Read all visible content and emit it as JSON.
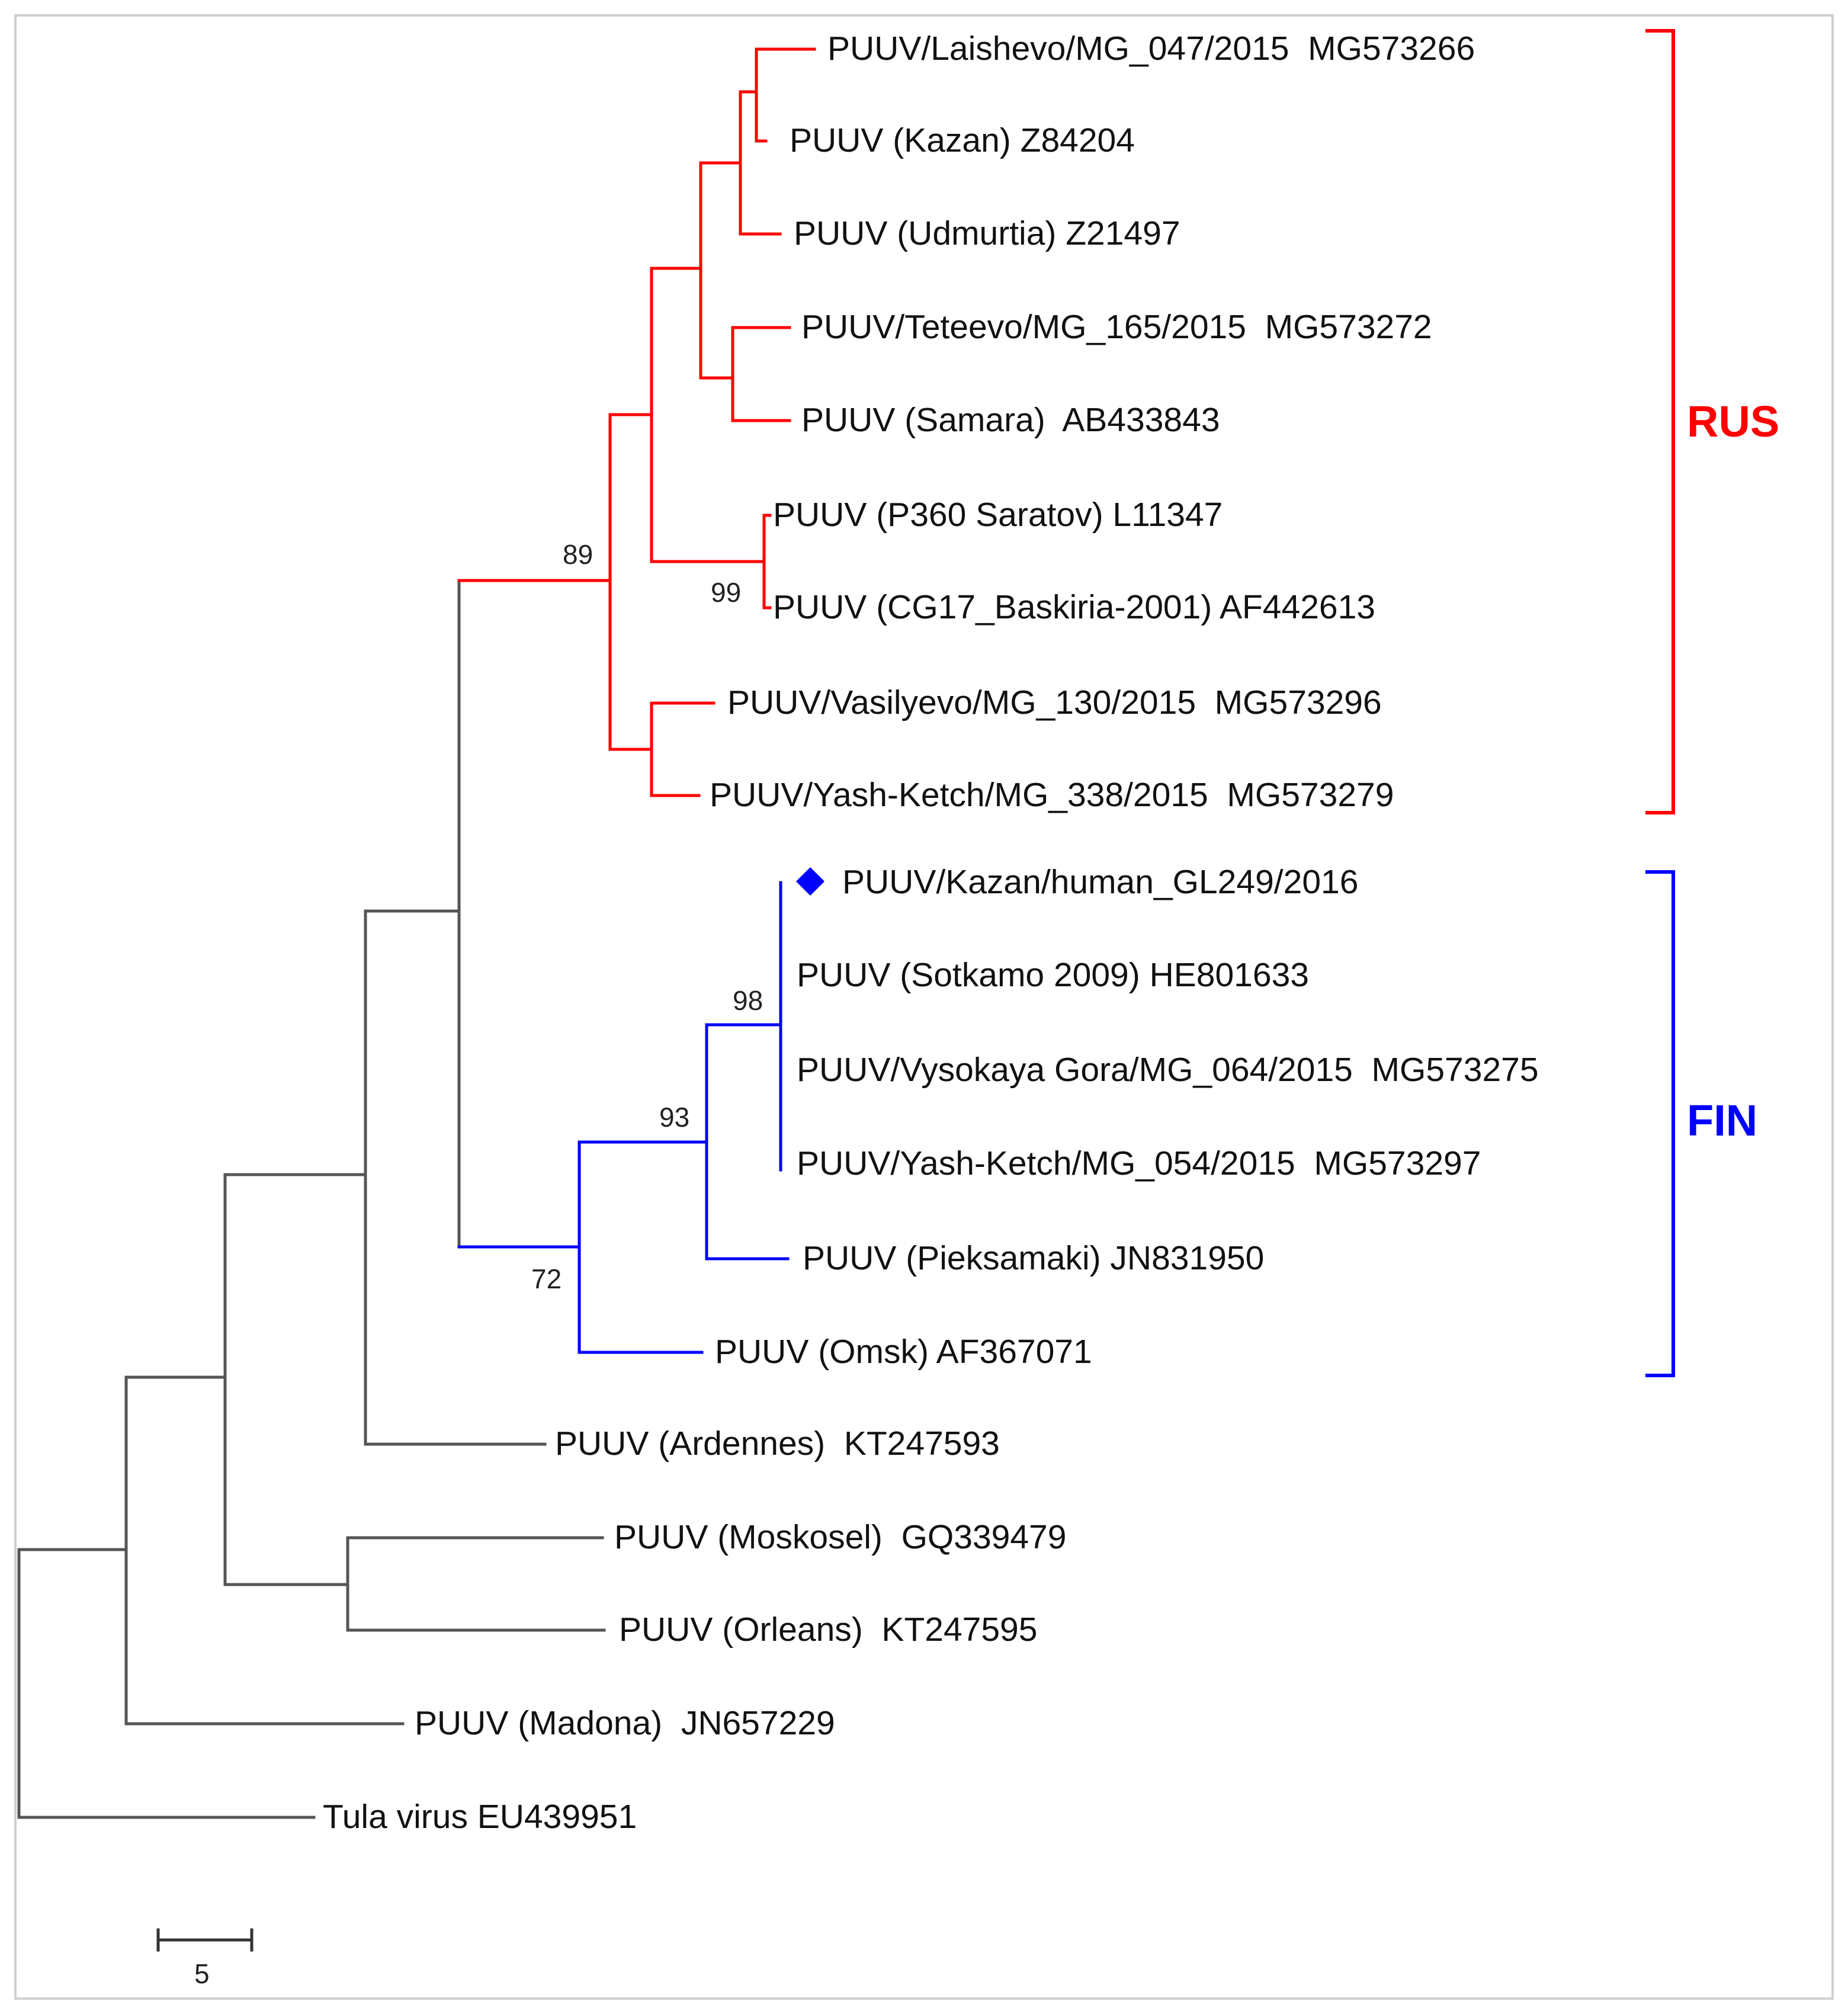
{
  "colors": {
    "russian_clade": "#ff0000",
    "finnish_clade": "#0000ff",
    "outgroup": "#555555",
    "marker": "#0000ff"
  },
  "clades": [
    {
      "id": "rus",
      "label": "RUS",
      "color": "#ff0000"
    },
    {
      "id": "fin",
      "label": "FIN",
      "color": "#0000ff"
    }
  ],
  "tips": [
    {
      "id": "laishevo",
      "label": "PUUV/Laishevo/MG_047/2015  MG573266"
    },
    {
      "id": "kazan",
      "label": "PUUV (Kazan) Z84204"
    },
    {
      "id": "udmurtia",
      "label": "PUUV (Udmurtia) Z21497"
    },
    {
      "id": "teteevo",
      "label": "PUUV/Teteevo/MG_165/2015  MG573272"
    },
    {
      "id": "samara",
      "label": "PUUV (Samara)  AB433843"
    },
    {
      "id": "saratov",
      "label": "PUUV (P360 Saratov) L11347"
    },
    {
      "id": "baskiria",
      "label": "PUUV (CG17_Baskiria-2001) AF442613"
    },
    {
      "id": "vasilyevo",
      "label": "PUUV/Vasilyevo/MG_130/2015  MG573296"
    },
    {
      "id": "yashketch338",
      "label": "PUUV/Yash-Ketch/MG_338/2015  MG573279"
    },
    {
      "id": "kazanhuman",
      "label": "PUUV/Kazan/human_GL249/2016",
      "marker": "diamond"
    },
    {
      "id": "sotkamo",
      "label": "PUUV (Sotkamo 2009) HE801633"
    },
    {
      "id": "vysokaya",
      "label": "PUUV/Vysokaya Gora/MG_064/2015  MG573275"
    },
    {
      "id": "yashketch054",
      "label": "PUUV/Yash-Ketch/MG_054/2015  MG573297"
    },
    {
      "id": "pieksamaki",
      "label": "PUUV (Pieksamaki) JN831950"
    },
    {
      "id": "omsk",
      "label": "PUUV (Omsk) AF367071"
    },
    {
      "id": "ardennes",
      "label": "PUUV (Ardennes)  KT247593"
    },
    {
      "id": "moskosel",
      "label": "PUUV (Moskosel)  GQ339479"
    },
    {
      "id": "orleans",
      "label": "PUUV (Orleans)  KT247595"
    },
    {
      "id": "madona",
      "label": "PUUV (Madona)  JN657229"
    },
    {
      "id": "tula",
      "label": "Tula virus EU439951"
    }
  ],
  "bootstrap": [
    {
      "id": "rus-node",
      "value": "89"
    },
    {
      "id": "saratov-node",
      "value": "99"
    },
    {
      "id": "fin-core-node",
      "value": "98"
    },
    {
      "id": "fin-node",
      "value": "93"
    },
    {
      "id": "fin-omsk-node",
      "value": "72"
    }
  ],
  "scale_bar": {
    "value": 5,
    "label": "5"
  }
}
